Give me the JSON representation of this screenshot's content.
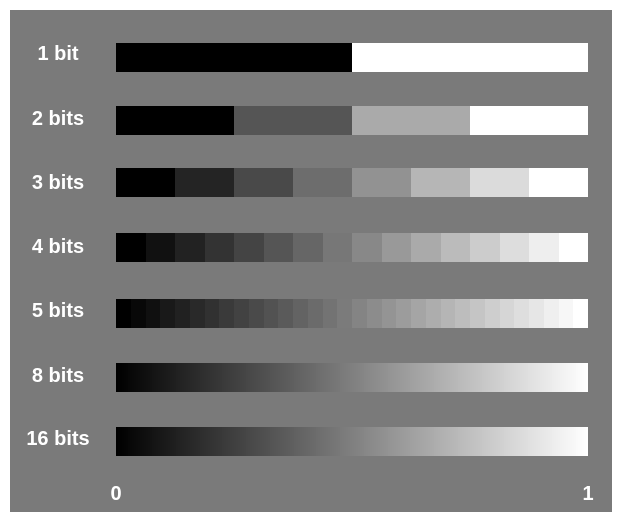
{
  "rows": [
    {
      "label": "1 bit",
      "bits": 1
    },
    {
      "label": "2 bits",
      "bits": 2
    },
    {
      "label": "3 bits",
      "bits": 3
    },
    {
      "label": "4 bits",
      "bits": 4
    },
    {
      "label": "5 bits",
      "bits": 5
    },
    {
      "label": "8 bits",
      "bits": 8
    },
    {
      "label": "16 bits",
      "bits": 16
    }
  ],
  "axis": {
    "min_label": "0",
    "max_label": "1"
  },
  "colors": {
    "background": "#7a7a7a",
    "text": "#ffffff"
  }
}
